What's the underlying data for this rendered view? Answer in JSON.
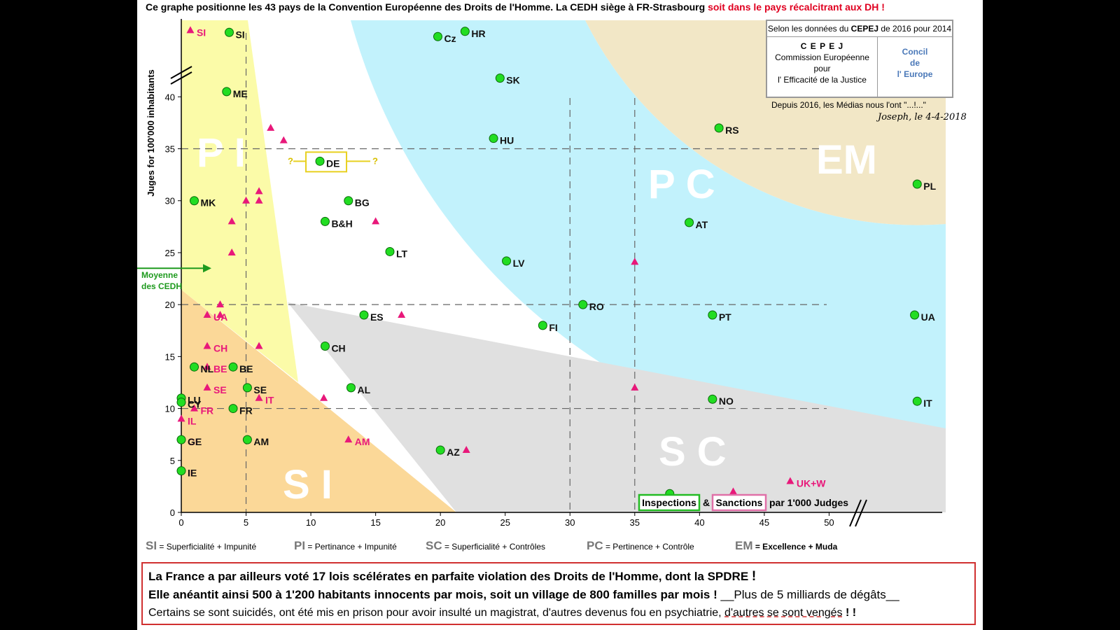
{
  "title": {
    "main": "Ce graphe positionne les 43 pays de la Convention Européenne des Droits de l'Homme.  La CEDH siège à FR-Strasbourg",
    "red": "soit dans le pays récalcitrant aux DH",
    "mark": "!"
  },
  "cepej": {
    "header_pre": "Selon les données du ",
    "header_bold": "CEPEJ",
    "header_post": " de 2016 pour 2014",
    "acronym": "C E P E J",
    "line1": "Commission Européenne",
    "line2": "pour",
    "line3": "l' Efficacité de la Justice",
    "council1": "Concil",
    "council2": "de",
    "council3": "l' Europe"
  },
  "medias_note": "Depuis 2016, les Médias nous l'ont \"...!...\"",
  "signature": "Joseph, le 4-4-2018",
  "moyenne_label": [
    "Moyenne",
    "des CEDH"
  ],
  "zone_labels": {
    "PI": "P I",
    "SI": "S I",
    "SC": "S C",
    "PC": "P C",
    "EM": "EM"
  },
  "legend": [
    {
      "code": "SI",
      "text": "= Superficialité + Impunité"
    },
    {
      "code": "PI",
      "text": "= Pertinance + Impunité"
    },
    {
      "code": "SC",
      "text": "= Superficialité + Contrôles"
    },
    {
      "code": "PC",
      "text": "= Pertinence + Contrôle"
    },
    {
      "code": "EM",
      "text": "= Excellence + Muda"
    }
  ],
  "inspections_label": "Inspections",
  "amp": "&",
  "sanctions_label": "Sanctions",
  "par_judges": "par 1'000 Judges",
  "de_questions": [
    "?",
    "?"
  ],
  "bottom": {
    "line1": "La France a par ailleurs voté 17 lois  scélérates   en parfaite violation des Droits de l'Homme,  dont la SPDRE",
    "line1_mark": "!",
    "line2": "Elle anéantit ainsi 500 à 1'200 habitants innocents par mois, soit un village de  800  familles  par mois !",
    "line2_extra": "__Plus de 5 milliards de dégâts__",
    "line3_pre": "Certains se sont suicidés, ont été mis en prison pour avoir insulté un magistrat, d'autres devenus fou en psychiatrie, ",
    "line3_ul": "d'autres se sont vengés",
    "line3_mark": " ! !"
  },
  "chart_data": {
    "type": "scatter",
    "ylabel": "Juges for 100'000 inhabitants",
    "xticks": [
      0,
      5,
      10,
      15,
      20,
      25,
      30,
      35,
      40,
      45,
      50
    ],
    "yticks": [
      0,
      5,
      10,
      15,
      20,
      25,
      30,
      35,
      40
    ],
    "xlim": [
      0,
      59
    ],
    "ylim": [
      0,
      47.5
    ],
    "mean_judges": 23.5,
    "colors": {
      "judges": "#22dd22",
      "sanctions": "#e8187a",
      "PI": "#fbfba8",
      "SI": "#fbd898",
      "SC": "#e0e0e0",
      "PC": "#c2f2fc",
      "EM": "#f2e7c6"
    },
    "judges": [
      {
        "label": "SI",
        "x": 3.7,
        "y": 46.2
      },
      {
        "label": "Cz",
        "x": 19.8,
        "y": 45.8
      },
      {
        "label": "HR",
        "x": 21.9,
        "y": 46.3
      },
      {
        "label": "ME",
        "x": 3.5,
        "y": 40.5
      },
      {
        "label": "SK",
        "x": 24.6,
        "y": 41.8
      },
      {
        "label": "HU",
        "x": 24.1,
        "y": 36.0
      },
      {
        "label": "RS",
        "x": 41.5,
        "y": 37.0
      },
      {
        "label": "DE",
        "x": 10.7,
        "y": 33.8
      },
      {
        "label": "PL",
        "x": 56.8,
        "y": 31.6
      },
      {
        "label": "MK",
        "x": 1.0,
        "y": 30.0
      },
      {
        "label": "BG",
        "x": 12.9,
        "y": 30.0
      },
      {
        "label": "B&H",
        "x": 11.1,
        "y": 28.0
      },
      {
        "label": "AT",
        "x": 39.2,
        "y": 27.9
      },
      {
        "label": "LT",
        "x": 16.1,
        "y": 25.1
      },
      {
        "label": "LV",
        "x": 25.1,
        "y": 24.2
      },
      {
        "label": "RO",
        "x": 31.0,
        "y": 20.0
      },
      {
        "label": "ES",
        "x": 14.1,
        "y": 19.0
      },
      {
        "label": "PT",
        "x": 41.0,
        "y": 19.0
      },
      {
        "label": "UA",
        "x": 56.6,
        "y": 19.0
      },
      {
        "label": "FI",
        "x": 27.9,
        "y": 18.0
      },
      {
        "label": "CH",
        "x": 11.1,
        "y": 16.0
      },
      {
        "label": "NL",
        "x": 1.0,
        "y": 14.0
      },
      {
        "label": "BE",
        "x": 4.0,
        "y": 14.0
      },
      {
        "label": "AL",
        "x": 13.1,
        "y": 12.0
      },
      {
        "label": "SE",
        "x": 5.1,
        "y": 12.0
      },
      {
        "label": "LU",
        "x": 0.0,
        "y": 11.0
      },
      {
        "label": "CY",
        "x": 0.0,
        "y": 10.6
      },
      {
        "label": "NO",
        "x": 41.0,
        "y": 10.9
      },
      {
        "label": "IT",
        "x": 56.8,
        "y": 10.7
      },
      {
        "label": "FR",
        "x": 4.0,
        "y": 10.0
      },
      {
        "label": "GE",
        "x": 0.0,
        "y": 7.0
      },
      {
        "label": "AM",
        "x": 5.1,
        "y": 7.0
      },
      {
        "label": "AZ",
        "x": 20.0,
        "y": 6.0
      },
      {
        "label": "IE",
        "x": 0.0,
        "y": 4.0
      },
      {
        "label": "",
        "x": 37.7,
        "y": 1.8
      }
    ],
    "sanctions": [
      {
        "label": "SI",
        "x": 0.7,
        "y": 46.4
      },
      {
        "label": "",
        "x": 6.9,
        "y": 37.0
      },
      {
        "label": "",
        "x": 7.9,
        "y": 35.8
      },
      {
        "label": "",
        "x": 6.0,
        "y": 30.9
      },
      {
        "label": "",
        "x": 6.0,
        "y": 30.0
      },
      {
        "label": "",
        "x": 5.0,
        "y": 30.0
      },
      {
        "label": "",
        "x": 3.9,
        "y": 28.0
      },
      {
        "label": "",
        "x": 15.0,
        "y": 28.0
      },
      {
        "label": "",
        "x": 3.9,
        "y": 25.0
      },
      {
        "label": "",
        "x": 35.0,
        "y": 24.1
      },
      {
        "label": "",
        "x": 3.0,
        "y": 20.0
      },
      {
        "label": "UA",
        "x": 2.0,
        "y": 19.0
      },
      {
        "label": "",
        "x": 3.0,
        "y": 19.0
      },
      {
        "label": "",
        "x": 17.0,
        "y": 19.0
      },
      {
        "label": "",
        "x": 27.9,
        "y": 18.0
      },
      {
        "label": "CH",
        "x": 2.0,
        "y": 16.0
      },
      {
        "label": "",
        "x": 6.0,
        "y": 16.0
      },
      {
        "label": "BE",
        "x": 2.0,
        "y": 14.0
      },
      {
        "label": "",
        "x": 35.0,
        "y": 12.0
      },
      {
        "label": "SE",
        "x": 2.0,
        "y": 12.0
      },
      {
        "label": "",
        "x": 0.0,
        "y": 11.0
      },
      {
        "label": "IT",
        "x": 6.0,
        "y": 11.0
      },
      {
        "label": "",
        "x": 11.0,
        "y": 11.0
      },
      {
        "label": "FR",
        "x": 1.0,
        "y": 10.0
      },
      {
        "label": "IL",
        "x": 0.0,
        "y": 9.0
      },
      {
        "label": "AM",
        "x": 12.9,
        "y": 7.0
      },
      {
        "label": "GE",
        "x": 0.0,
        "y": 7.0
      },
      {
        "label": "",
        "x": 22.0,
        "y": 6.0
      },
      {
        "label": "IE",
        "x": 0.0,
        "y": 4.0
      },
      {
        "label": "UK+W",
        "x": 47.0,
        "y": 3.0
      },
      {
        "label": "",
        "x": 42.6,
        "y": 2.0
      }
    ]
  }
}
